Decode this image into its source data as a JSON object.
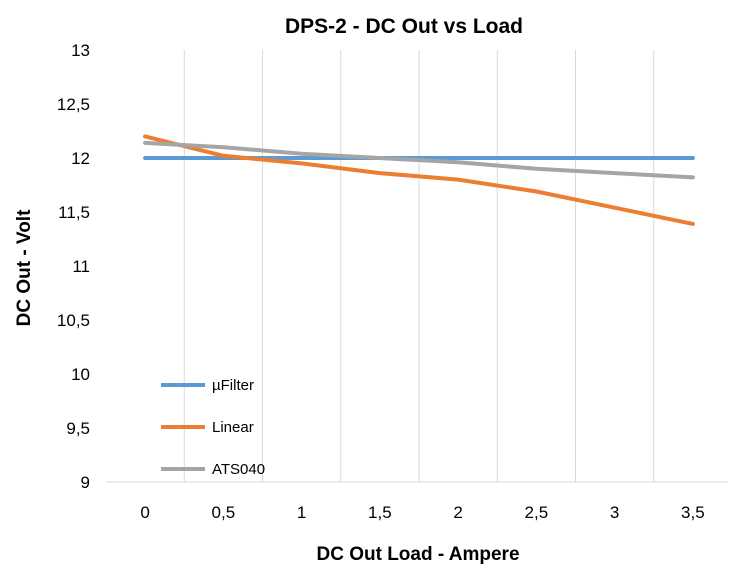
{
  "chart_data": {
    "type": "line",
    "title": "DPS-2 - DC Out vs Load",
    "xlabel": "DC Out Load - Ampere",
    "ylabel": "DC Out - Volt",
    "x": [
      0,
      0.5,
      1,
      1.5,
      2,
      2.5,
      3,
      3.5
    ],
    "x_tick_labels": [
      "0",
      "0,5",
      "1",
      "1,5",
      "2",
      "2,5",
      "3",
      "3,5"
    ],
    "ylim": [
      9,
      13
    ],
    "y_ticks": [
      9,
      9.5,
      10,
      10.5,
      11,
      11.5,
      12,
      12.5,
      13
    ],
    "y_tick_labels": [
      "9",
      "9,5",
      "10",
      "10,5",
      "11",
      "11,5",
      "12",
      "12,5",
      "13"
    ],
    "grid": "vertical",
    "legend_position": "bottom-left",
    "series": [
      {
        "name": "µFilter",
        "color": "#5b9bd5",
        "values": [
          12.0,
          12.0,
          12.0,
          12.0,
          12.0,
          12.0,
          12.0,
          12.0
        ]
      },
      {
        "name": "Linear",
        "color": "#ed7d31",
        "values": [
          12.2,
          12.02,
          11.95,
          11.86,
          11.8,
          11.69,
          11.54,
          11.39
        ]
      },
      {
        "name": "ATS040",
        "color": "#a5a5a5",
        "values": [
          12.14,
          12.1,
          12.04,
          12.0,
          11.96,
          11.9,
          11.86,
          11.82
        ]
      }
    ]
  }
}
